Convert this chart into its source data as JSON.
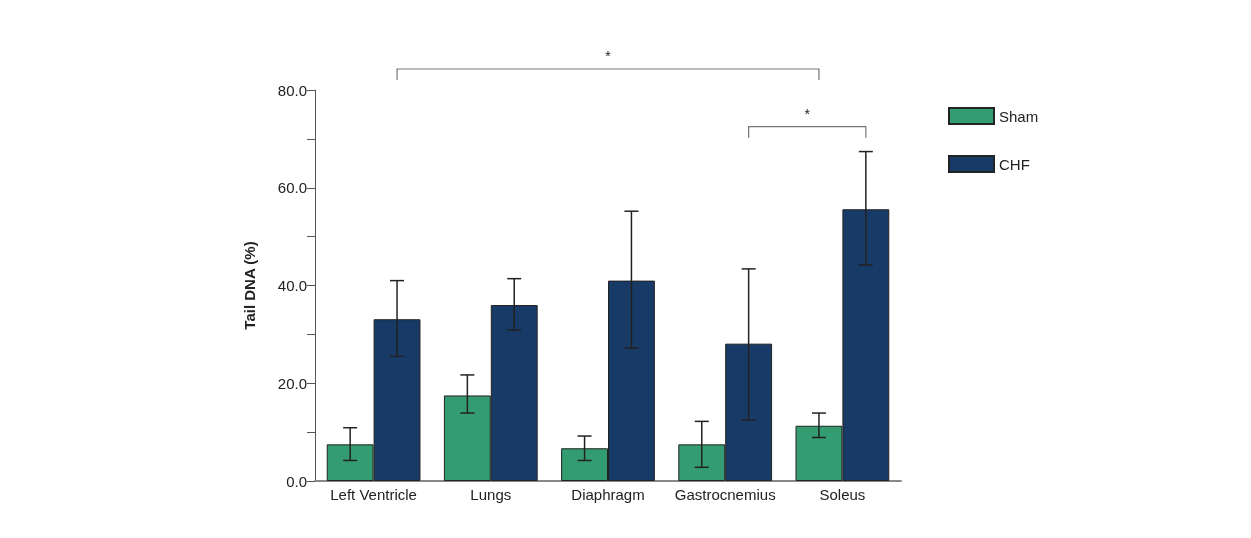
{
  "chart_data": {
    "type": "bar",
    "ylabel": "Tail DNA (%)",
    "categories": [
      "Left Ventricle",
      "Lungs",
      "Diaphragm",
      "Gastrocnemius",
      "Soleus"
    ],
    "series": [
      {
        "name": "Sham",
        "color": "#339c70",
        "values": [
          7.5,
          17.5,
          6.7,
          7.5,
          11.3
        ],
        "errors": [
          [
            4.2,
            10.9
          ],
          [
            13.9,
            21.7
          ],
          [
            4.2,
            9.2
          ],
          [
            2.8,
            12.2
          ],
          [
            8.9,
            13.9
          ]
        ]
      },
      {
        "name": "CHF",
        "color": "#173a66",
        "values": [
          33.1,
          36.0,
          41.0,
          28.1,
          55.6
        ],
        "errors": [
          [
            25.5,
            41.0
          ],
          [
            30.9,
            41.4
          ],
          [
            27.2,
            55.2
          ],
          [
            12.5,
            43.4
          ],
          [
            44.2,
            67.4
          ]
        ]
      }
    ],
    "ylim": [
      0,
      80
    ],
    "yticks": [
      {
        "value": 0,
        "label": "0.0"
      },
      {
        "value": 10,
        "label": null
      },
      {
        "value": 20,
        "label": "20.0"
      },
      {
        "value": 30,
        "label": null
      },
      {
        "value": 40,
        "label": "40.0"
      },
      {
        "value": 50,
        "label": null
      },
      {
        "value": 60,
        "label": "60.0"
      },
      {
        "value": 70,
        "label": null
      },
      {
        "value": 80,
        "label": "80.0"
      }
    ],
    "grid": false,
    "legend": "right",
    "annotations": [
      "*",
      "*"
    ]
  }
}
